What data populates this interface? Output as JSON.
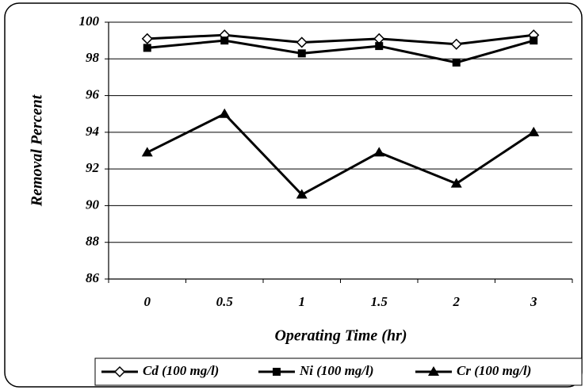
{
  "chart_data": {
    "type": "line",
    "categories": [
      "0",
      "0.5",
      "1",
      "1.5",
      "2",
      "3"
    ],
    "xlabel": "Operating Time (hr)",
    "ylabel": "Removal Percent",
    "ylim": [
      86,
      100
    ],
    "yticks": [
      86,
      88,
      90,
      92,
      94,
      96,
      98,
      100
    ],
    "grid": true,
    "legend": "bottom",
    "series": [
      {
        "name": "Cd (100 mg/l)",
        "color": "#000000",
        "marker": "diamond",
        "values": [
          99.1,
          99.3,
          98.9,
          99.1,
          98.8,
          99.3
        ]
      },
      {
        "name": "Ni (100 mg/l)",
        "color": "#000000",
        "marker": "square",
        "values": [
          98.6,
          99.0,
          98.3,
          98.7,
          97.8,
          99.0
        ]
      },
      {
        "name": "Cr (100 mg/l)",
        "color": "#000000",
        "marker": "triangle",
        "values": [
          92.9,
          95.0,
          90.6,
          92.9,
          91.2,
          94.0
        ]
      }
    ]
  }
}
